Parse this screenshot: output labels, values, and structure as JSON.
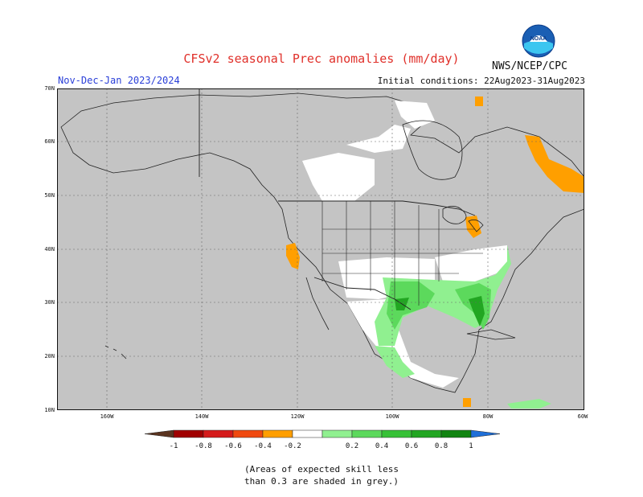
{
  "header": {
    "title": "CFSv2 seasonal Prec anomalies (mm/day)",
    "period": "Nov-Dec-Jan 2023/2024",
    "initial_conditions": "Initial conditions: 22Aug2023-31Aug2023",
    "agency": "NWS/NCEP/CPC",
    "logo_text": "NOAA"
  },
  "map": {
    "lat_labels": [
      "70N",
      "60N",
      "50N",
      "40N",
      "30N",
      "20N",
      "10N"
    ],
    "lon_labels": [
      "160W",
      "140W",
      "120W",
      "100W",
      "80W",
      "60W"
    ],
    "colors": {
      "skill_grey": "#c4c4c4",
      "dry_light": "#ff9f00",
      "wet_light": "#90f090",
      "wet_mid": "#5cd95c",
      "wet_dark": "#22a622",
      "wet_darkest": "#118411"
    }
  },
  "legend": {
    "labels": [
      "-1",
      "-0.8",
      "-0.6",
      "-0.4",
      "-0.2",
      "0.2",
      "0.4",
      "0.6",
      "0.8",
      "1"
    ],
    "colors": [
      "#5a3420",
      "#a00000",
      "#d51b1b",
      "#f04a10",
      "#ff9f00",
      "#ffffff",
      "#90f090",
      "#5cd95c",
      "#37c137",
      "#22a622",
      "#118411",
      "#1f6fd8"
    ]
  },
  "footnote": {
    "line1": "(Areas of expected skill less",
    "line2": "than 0.3 are shaded in grey.)"
  }
}
